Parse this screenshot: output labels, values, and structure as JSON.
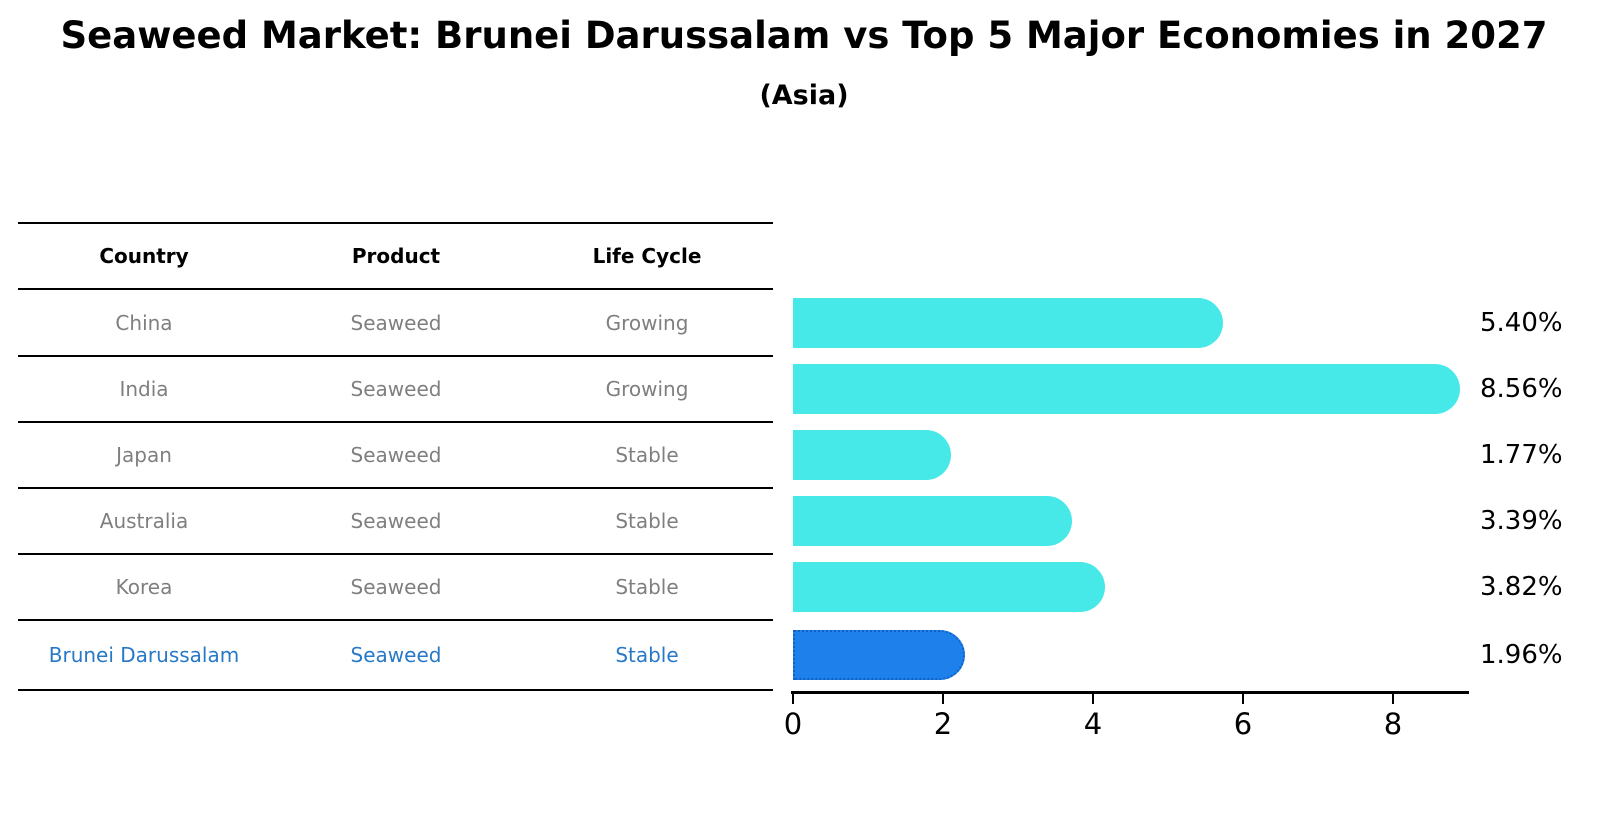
{
  "title": "Seaweed Market: Brunei Darussalam vs Top 5 Major Economies in 2027",
  "subtitle": "(Asia)",
  "table": {
    "headers": [
      "Country",
      "Product",
      "Life Cycle"
    ],
    "rows": [
      {
        "country": "China",
        "product": "Seaweed",
        "life_cycle": "Growing",
        "highlight": false
      },
      {
        "country": "India",
        "product": "Seaweed",
        "life_cycle": "Growing",
        "highlight": false
      },
      {
        "country": "Japan",
        "product": "Seaweed",
        "life_cycle": "Stable",
        "highlight": false
      },
      {
        "country": "Australia",
        "product": "Seaweed",
        "life_cycle": "Stable",
        "highlight": false
      },
      {
        "country": "Korea",
        "product": "Seaweed",
        "life_cycle": "Stable",
        "highlight": false
      },
      {
        "country": "Brunei Darussalam",
        "product": "Seaweed",
        "life_cycle": "Stable",
        "highlight": true
      }
    ]
  },
  "chart_data": {
    "type": "bar",
    "orientation": "horizontal",
    "title": "Seaweed Market: Brunei Darussalam vs Top 5 Major Economies in 2027",
    "subtitle": "(Asia)",
    "categories": [
      "China",
      "India",
      "Japan",
      "Australia",
      "Korea",
      "Brunei Darussalam"
    ],
    "values": [
      5.4,
      8.56,
      1.77,
      3.39,
      3.82,
      1.96
    ],
    "value_labels": [
      "5.40%",
      "8.56%",
      "1.77%",
      "3.39%",
      "3.82%",
      "1.96%"
    ],
    "xlim": [
      0,
      9
    ],
    "xticks": [
      0,
      2,
      4,
      6,
      8
    ],
    "grid": false,
    "legend": false,
    "highlight_index": 5,
    "bar_color": "#46e8e8",
    "highlight_bar_color": "#1e80eb",
    "highlight_border_color": "#1262c4",
    "highlight_text_color": "#2878c8",
    "body_text_color": "#7f7f7f"
  }
}
